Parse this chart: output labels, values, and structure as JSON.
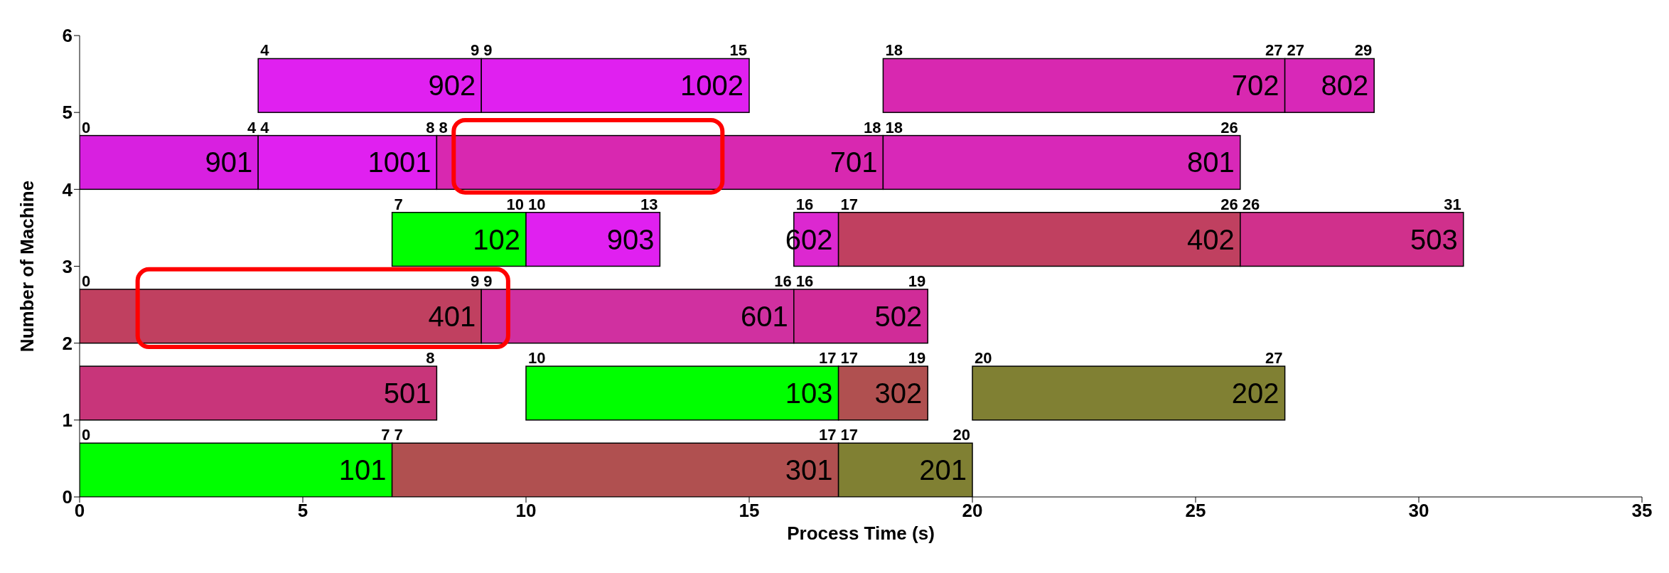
{
  "chart_data": {
    "type": "bar",
    "orientation": "horizontal",
    "xlabel": "Process Time (s)",
    "ylabel": "Number of Machine",
    "xlim": [
      0,
      35
    ],
    "xticks": [
      0,
      5,
      10,
      15,
      20,
      25,
      30,
      35
    ],
    "ylim": [
      0,
      6
    ],
    "yticks": [
      0,
      1,
      2,
      3,
      4,
      5,
      6
    ],
    "series": [
      {
        "name": "101",
        "color": "#00ff00",
        "x": [
          0.35
        ],
        "base": [
          0
        ],
        "values": [
          7
        ]
      },
      {
        "name": "301",
        "color": "#b05050",
        "x": [
          0.35
        ],
        "base": [
          7
        ],
        "values": [
          10
        ]
      },
      {
        "name": "201",
        "color": "#808033",
        "x": [
          0.35
        ],
        "base": [
          17
        ],
        "values": [
          3
        ]
      },
      {
        "name": "501",
        "color": "#c8357a",
        "x": [
          1.35
        ],
        "base": [
          0
        ],
        "values": [
          8
        ]
      },
      {
        "name": "103",
        "color": "#00ff00",
        "x": [
          1.35
        ],
        "base": [
          10
        ],
        "values": [
          7
        ]
      },
      {
        "name": "302",
        "color": "#b05050",
        "x": [
          1.35
        ],
        "base": [
          17
        ],
        "values": [
          2
        ]
      },
      {
        "name": "202",
        "color": "#808033",
        "x": [
          1.35
        ],
        "base": [
          20
        ],
        "values": [
          7
        ]
      },
      {
        "name": "401",
        "color": "#c04060",
        "x": [
          2.35
        ],
        "base": [
          0
        ],
        "values": [
          9
        ]
      },
      {
        "name": "601",
        "color": "#d030a0",
        "x": [
          2.35
        ],
        "base": [
          9
        ],
        "values": [
          7
        ]
      },
      {
        "name": "502",
        "color": "#d02c98",
        "x": [
          2.35
        ],
        "base": [
          16
        ],
        "values": [
          3
        ]
      },
      {
        "name": "102",
        "color": "#00ff00",
        "x": [
          3.35
        ],
        "base": [
          7
        ],
        "values": [
          3
        ]
      },
      {
        "name": "903",
        "color": "#e020f0",
        "x": [
          3.35
        ],
        "base": [
          10
        ],
        "values": [
          3
        ]
      },
      {
        "name": "602",
        "color": "#dc28d0",
        "x": [
          3.35
        ],
        "base": [
          16
        ],
        "values": [
          1
        ]
      },
      {
        "name": "402",
        "color": "#c04060",
        "x": [
          3.35
        ],
        "base": [
          17
        ],
        "values": [
          9
        ]
      },
      {
        "name": "503",
        "color": "#d0308c",
        "x": [
          3.35
        ],
        "base": [
          26
        ],
        "values": [
          5
        ]
      },
      {
        "name": "901",
        "color": "#d820e0",
        "x": [
          4.35
        ],
        "base": [
          0
        ],
        "values": [
          4
        ]
      },
      {
        "name": "1001",
        "color": "#e020f0",
        "x": [
          4.35
        ],
        "base": [
          4
        ],
        "values": [
          4
        ]
      },
      {
        "name": "701",
        "color": "#d828b0",
        "x": [
          4.35
        ],
        "base": [
          8
        ],
        "values": [
          10
        ]
      },
      {
        "name": "801",
        "color": "#d828b8",
        "x": [
          4.35
        ],
        "base": [
          18
        ],
        "values": [
          8
        ]
      },
      {
        "name": "902",
        "color": "#e020f0",
        "x": [
          5.35
        ],
        "base": [
          4
        ],
        "values": [
          5
        ]
      },
      {
        "name": "1002",
        "color": "#e020f0",
        "x": [
          5.35
        ],
        "base": [
          9
        ],
        "values": [
          6
        ]
      },
      {
        "name": "702",
        "color": "#d828b0",
        "x": [
          5.35
        ],
        "base": [
          18
        ],
        "values": [
          9
        ]
      },
      {
        "name": "802",
        "color": "#d828b8",
        "x": [
          5.35
        ],
        "base": [
          27
        ],
        "values": [
          2
        ]
      }
    ],
    "annotations": [
      {
        "text": "0",
        "x": 0,
        "y": 0.7
      },
      {
        "text": "7",
        "x": 7,
        "y": 0.7
      },
      {
        "text": "7",
        "x": 7,
        "y": 0.7
      },
      {
        "text": "17",
        "x": 17,
        "y": 0.7
      },
      {
        "text": "17",
        "x": 17,
        "y": 0.7
      },
      {
        "text": "20",
        "x": 20,
        "y": 0.7
      },
      {
        "text": "8",
        "x": 8,
        "y": 1.7
      },
      {
        "text": "10",
        "x": 10,
        "y": 1.7
      },
      {
        "text": "17",
        "x": 17,
        "y": 1.7
      },
      {
        "text": "17",
        "x": 17,
        "y": 1.7
      },
      {
        "text": "19",
        "x": 19,
        "y": 1.7
      },
      {
        "text": "20",
        "x": 20,
        "y": 1.7
      },
      {
        "text": "27",
        "x": 27,
        "y": 1.7
      },
      {
        "text": "0",
        "x": 0,
        "y": 2.7
      },
      {
        "text": "9",
        "x": 9,
        "y": 2.7
      },
      {
        "text": "9",
        "x": 9,
        "y": 2.7
      },
      {
        "text": "16",
        "x": 16,
        "y": 2.7
      },
      {
        "text": "16",
        "x": 16,
        "y": 2.7
      },
      {
        "text": "19",
        "x": 19,
        "y": 2.7
      },
      {
        "text": "7",
        "x": 7,
        "y": 3.7
      },
      {
        "text": "10",
        "x": 10,
        "y": 3.7
      },
      {
        "text": "10",
        "x": 10,
        "y": 3.7
      },
      {
        "text": "13",
        "x": 13,
        "y": 3.7
      },
      {
        "text": "16",
        "x": 16,
        "y": 3.7
      },
      {
        "text": "17",
        "x": 17,
        "y": 3.7
      },
      {
        "text": "26",
        "x": 26,
        "y": 3.7
      },
      {
        "text": "26",
        "x": 26,
        "y": 3.7
      },
      {
        "text": "31",
        "x": 31,
        "y": 3.7
      },
      {
        "text": "0",
        "x": 0,
        "y": 4.7
      },
      {
        "text": "4",
        "x": 4,
        "y": 4.7
      },
      {
        "text": "4",
        "x": 4,
        "y": 4.7
      },
      {
        "text": "8",
        "x": 8,
        "y": 4.7
      },
      {
        "text": "8",
        "x": 8,
        "y": 4.7
      },
      {
        "text": "18",
        "x": 18,
        "y": 4.7
      },
      {
        "text": "18",
        "x": 18,
        "y": 4.7
      },
      {
        "text": "26",
        "x": 26,
        "y": 4.7
      },
      {
        "text": "4",
        "x": 4,
        "y": 5.7
      },
      {
        "text": "9",
        "x": 9,
        "y": 5.7
      },
      {
        "text": "9",
        "x": 9,
        "y": 5.7
      },
      {
        "text": "15",
        "x": 15,
        "y": 5.7
      },
      {
        "text": "18",
        "x": 18,
        "y": 5.7
      },
      {
        "text": "27",
        "x": 27,
        "y": 5.7
      },
      {
        "text": "27",
        "x": 27,
        "y": 5.7
      },
      {
        "text": "29",
        "x": 29,
        "y": 5.7
      }
    ]
  }
}
